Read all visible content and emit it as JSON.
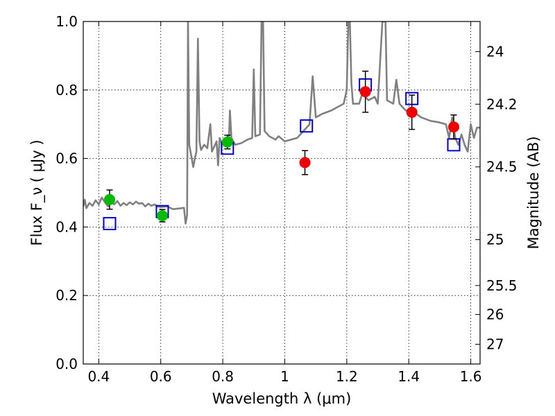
{
  "chart_data": {
    "type": "scatter",
    "xlabel": "Wavelength  λ (μm)",
    "ylabel": "Flux  F_ν  ( μJy )",
    "y2label": "Magnitude (AB)",
    "xlim": [
      0.35,
      1.63
    ],
    "ylim": [
      0.0,
      1.0
    ],
    "grid": true,
    "x_ticks": [
      {
        "value": 0.4,
        "label": "0.4"
      },
      {
        "value": 0.6,
        "label": "0.6"
      },
      {
        "value": 0.8,
        "label": "0.8"
      },
      {
        "value": 1.0,
        "label": "1"
      },
      {
        "value": 1.2,
        "label": "1.2"
      },
      {
        "value": 1.4,
        "label": "1.4"
      },
      {
        "value": 1.6,
        "label": "1.6"
      }
    ],
    "y_ticks": [
      {
        "value": 0.0,
        "label": "0.0"
      },
      {
        "value": 0.2,
        "label": "0.2"
      },
      {
        "value": 0.4,
        "label": "0.4"
      },
      {
        "value": 0.6,
        "label": "0.6"
      },
      {
        "value": 0.8,
        "label": "0.8"
      },
      {
        "value": 1.0,
        "label": "1.0"
      }
    ],
    "y2_ticks": [
      {
        "value": 24.0,
        "label": "24"
      },
      {
        "value": 24.2,
        "label": "24.2"
      },
      {
        "value": 24.5,
        "label": "24.5"
      },
      {
        "value": 25.0,
        "label": "25"
      },
      {
        "value": 25.5,
        "label": "25.5"
      },
      {
        "value": 26.0,
        "label": "26"
      },
      {
        "value": 27.0,
        "label": "27"
      }
    ],
    "model_spectrum": {
      "color": "#808080",
      "points": [
        [
          0.35,
          0.46
        ],
        [
          0.355,
          0.48
        ],
        [
          0.36,
          0.455
        ],
        [
          0.37,
          0.47
        ],
        [
          0.38,
          0.462
        ],
        [
          0.39,
          0.478
        ],
        [
          0.4,
          0.466
        ],
        [
          0.41,
          0.486
        ],
        [
          0.42,
          0.472
        ],
        [
          0.43,
          0.46
        ],
        [
          0.44,
          0.474
        ],
        [
          0.45,
          0.466
        ],
        [
          0.46,
          0.476
        ],
        [
          0.47,
          0.462
        ],
        [
          0.48,
          0.47
        ],
        [
          0.49,
          0.464
        ],
        [
          0.5,
          0.472
        ],
        [
          0.51,
          0.466
        ],
        [
          0.52,
          0.474
        ],
        [
          0.53,
          0.468
        ],
        [
          0.54,
          0.47
        ],
        [
          0.55,
          0.46
        ],
        [
          0.56,
          0.468
        ],
        [
          0.57,
          0.462
        ],
        [
          0.58,
          0.466
        ],
        [
          0.59,
          0.46
        ],
        [
          0.6,
          0.458
        ],
        [
          0.62,
          0.46
        ],
        [
          0.64,
          0.452
        ],
        [
          0.66,
          0.454
        ],
        [
          0.675,
          0.456
        ],
        [
          0.68,
          0.41
        ],
        [
          0.685,
          0.435
        ],
        [
          0.688,
          1.0
        ],
        [
          0.692,
          0.64
        ],
        [
          0.7,
          0.6
        ],
        [
          0.705,
          0.575
        ],
        [
          0.71,
          0.6
        ],
        [
          0.715,
          0.62
        ],
        [
          0.72,
          0.95
        ],
        [
          0.725,
          0.65
        ],
        [
          0.73,
          0.625
        ],
        [
          0.74,
          0.64
        ],
        [
          0.75,
          0.63
        ],
        [
          0.76,
          0.7
        ],
        [
          0.765,
          0.62
        ],
        [
          0.77,
          0.63
        ],
        [
          0.78,
          0.65
        ],
        [
          0.785,
          0.58
        ],
        [
          0.79,
          0.66
        ],
        [
          0.8,
          0.64
        ],
        [
          0.81,
          0.645
        ],
        [
          0.82,
          0.655
        ],
        [
          0.823,
          0.74
        ],
        [
          0.828,
          0.66
        ],
        [
          0.84,
          0.64
        ],
        [
          0.86,
          0.645
        ],
        [
          0.88,
          0.655
        ],
        [
          0.895,
          0.66
        ],
        [
          0.9,
          0.86
        ],
        [
          0.905,
          0.665
        ],
        [
          0.92,
          0.67
        ],
        [
          0.925,
          1.0
        ],
        [
          0.93,
          1.0
        ],
        [
          0.935,
          0.68
        ],
        [
          0.95,
          0.665
        ],
        [
          0.97,
          0.655
        ],
        [
          0.98,
          0.665
        ],
        [
          1.0,
          0.65
        ],
        [
          1.02,
          0.655
        ],
        [
          1.04,
          0.66
        ],
        [
          1.06,
          0.68
        ],
        [
          1.08,
          0.7
        ],
        [
          1.09,
          0.84
        ],
        [
          1.1,
          0.72
        ],
        [
          1.12,
          0.73
        ],
        [
          1.15,
          0.74
        ],
        [
          1.17,
          0.75
        ],
        [
          1.19,
          0.76
        ],
        [
          1.2,
          0.8
        ],
        [
          1.205,
          1.0
        ],
        [
          1.21,
          1.0
        ],
        [
          1.215,
          0.82
        ],
        [
          1.22,
          0.76
        ],
        [
          1.24,
          0.76
        ],
        [
          1.25,
          0.79
        ],
        [
          1.27,
          0.77
        ],
        [
          1.29,
          0.78
        ],
        [
          1.3,
          0.76
        ],
        [
          1.315,
          1.0
        ],
        [
          1.325,
          1.0
        ],
        [
          1.33,
          0.77
        ],
        [
          1.35,
          0.76
        ],
        [
          1.36,
          0.83
        ],
        [
          1.37,
          0.76
        ],
        [
          1.39,
          0.74
        ],
        [
          1.41,
          0.74
        ],
        [
          1.44,
          0.72
        ],
        [
          1.47,
          0.71
        ],
        [
          1.5,
          0.705
        ],
        [
          1.52,
          0.7
        ],
        [
          1.53,
          0.66
        ],
        [
          1.54,
          0.72
        ],
        [
          1.55,
          0.66
        ],
        [
          1.56,
          0.64
        ],
        [
          1.57,
          0.67
        ],
        [
          1.58,
          0.64
        ],
        [
          1.59,
          0.62
        ],
        [
          1.6,
          0.7
        ],
        [
          1.61,
          0.66
        ],
        [
          1.62,
          0.69
        ],
        [
          1.63,
          0.69
        ]
      ]
    },
    "model_photometry": {
      "marker": "square",
      "color": "#0000cc",
      "points": [
        [
          0.435,
          0.41
        ],
        [
          0.605,
          0.445
        ],
        [
          0.815,
          0.63
        ],
        [
          1.07,
          0.695
        ],
        [
          1.26,
          0.815
        ],
        [
          1.41,
          0.775
        ],
        [
          1.545,
          0.64
        ]
      ]
    },
    "observed_optical": {
      "marker": "circle",
      "color": "#00bb00",
      "points": [
        {
          "x": 0.435,
          "y": 0.48,
          "err": 0.028
        },
        {
          "x": 0.605,
          "y": 0.433,
          "err": 0.018
        },
        {
          "x": 0.815,
          "y": 0.648,
          "err": 0.02
        }
      ]
    },
    "observed_nir": {
      "marker": "circle",
      "color": "#ee0000",
      "points": [
        {
          "x": 1.065,
          "y": 0.588,
          "err": 0.035
        },
        {
          "x": 1.26,
          "y": 0.795,
          "err": 0.06
        },
        {
          "x": 1.41,
          "y": 0.735,
          "err": 0.05
        },
        {
          "x": 1.545,
          "y": 0.692,
          "err": 0.035
        }
      ]
    }
  }
}
